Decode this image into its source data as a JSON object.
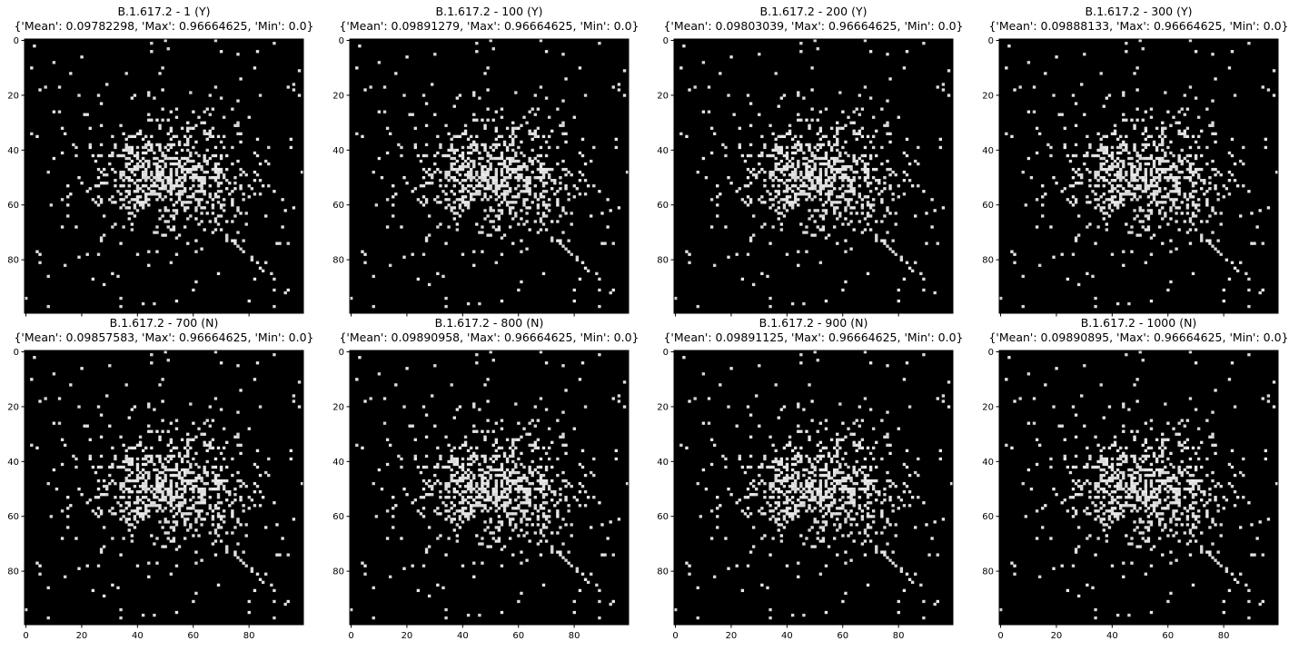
{
  "colors": {
    "background": "#000000",
    "pixel": "#d8d8d8",
    "frame": "#000000"
  },
  "chart_data": [
    {
      "type": "heatmap",
      "title_line1": "B.1.617.2 - 1 (Y)",
      "title_line2": "{'Mean': 0.09782298, 'Max': 0.96664625, 'Min': 0.0}",
      "colormap": "gray",
      "xlim": [
        0,
        100
      ],
      "ylim": [
        0,
        100
      ],
      "xticks": [
        "0",
        "20",
        "40",
        "60",
        "80"
      ],
      "yticks": [
        "0",
        "20",
        "40",
        "60",
        "80"
      ],
      "xtick_labels_shown": false,
      "stats": {
        "mean": 0.09782298,
        "max": 0.96664625,
        "min": 0.0
      }
    },
    {
      "type": "heatmap",
      "title_line1": "B.1.617.2 - 100 (Y)",
      "title_line2": "{'Mean': 0.09891279, 'Max': 0.96664625, 'Min': 0.0}",
      "colormap": "gray",
      "xlim": [
        0,
        100
      ],
      "ylim": [
        0,
        100
      ],
      "xticks": [
        "0",
        "20",
        "40",
        "60",
        "80"
      ],
      "yticks": [
        "0",
        "20",
        "40",
        "60",
        "80"
      ],
      "xtick_labels_shown": false,
      "stats": {
        "mean": 0.09891279,
        "max": 0.96664625,
        "min": 0.0
      }
    },
    {
      "type": "heatmap",
      "title_line1": "B.1.617.2 - 200 (Y)",
      "title_line2": "{'Mean': 0.09803039, 'Max': 0.96664625, 'Min': 0.0}",
      "colormap": "gray",
      "xlim": [
        0,
        100
      ],
      "ylim": [
        0,
        100
      ],
      "xticks": [
        "0",
        "20",
        "40",
        "60",
        "80"
      ],
      "yticks": [
        "0",
        "20",
        "40",
        "60",
        "80"
      ],
      "xtick_labels_shown": false,
      "stats": {
        "mean": 0.09803039,
        "max": 0.96664625,
        "min": 0.0
      }
    },
    {
      "type": "heatmap",
      "title_line1": "B.1.617.2 - 300 (Y)",
      "title_line2": "{'Mean': 0.09888133, 'Max': 0.96664625, 'Min': 0.0}",
      "colormap": "gray",
      "xlim": [
        0,
        100
      ],
      "ylim": [
        0,
        100
      ],
      "xticks": [
        "0",
        "20",
        "40",
        "60",
        "80"
      ],
      "yticks": [
        "0",
        "20",
        "40",
        "60",
        "80"
      ],
      "xtick_labels_shown": false,
      "stats": {
        "mean": 0.09888133,
        "max": 0.96664625,
        "min": 0.0
      }
    },
    {
      "type": "heatmap",
      "title_line1": "B.1.617.2 - 700 (N)",
      "title_line2": "{'Mean': 0.09857583, 'Max': 0.96664625, 'Min': 0.0}",
      "colormap": "gray",
      "xlim": [
        0,
        100
      ],
      "ylim": [
        0,
        100
      ],
      "xticks": [
        "0",
        "20",
        "40",
        "60",
        "80"
      ],
      "yticks": [
        "0",
        "20",
        "40",
        "60",
        "80"
      ],
      "xtick_labels_shown": true,
      "stats": {
        "mean": 0.09857583,
        "max": 0.96664625,
        "min": 0.0
      }
    },
    {
      "type": "heatmap",
      "title_line1": "B.1.617.2 - 800 (N)",
      "title_line2": "{'Mean': 0.09890958, 'Max': 0.96664625, 'Min': 0.0}",
      "colormap": "gray",
      "xlim": [
        0,
        100
      ],
      "ylim": [
        0,
        100
      ],
      "xticks": [
        "0",
        "20",
        "40",
        "60",
        "80"
      ],
      "yticks": [
        "0",
        "20",
        "40",
        "60",
        "80"
      ],
      "xtick_labels_shown": true,
      "stats": {
        "mean": 0.09890958,
        "max": 0.96664625,
        "min": 0.0
      }
    },
    {
      "type": "heatmap",
      "title_line1": "B.1.617.2 - 900 (N)",
      "title_line2": "{'Mean': 0.09891125, 'Max': 0.96664625, 'Min': 0.0}",
      "colormap": "gray",
      "xlim": [
        0,
        100
      ],
      "ylim": [
        0,
        100
      ],
      "xticks": [
        "0",
        "20",
        "40",
        "60",
        "80"
      ],
      "yticks": [
        "0",
        "20",
        "40",
        "60",
        "80"
      ],
      "xtick_labels_shown": true,
      "stats": {
        "mean": 0.09891125,
        "max": 0.96664625,
        "min": 0.0
      }
    },
    {
      "type": "heatmap",
      "title_line1": "B.1.617.2 - 1000 (N)",
      "title_line2": "{'Mean': 0.09890895, 'Max': 0.96664625, 'Min': 0.0}",
      "colormap": "gray",
      "xlim": [
        0,
        100
      ],
      "ylim": [
        0,
        100
      ],
      "xticks": [
        "0",
        "20",
        "40",
        "60",
        "80"
      ],
      "yticks": [
        "0",
        "20",
        "40",
        "60",
        "80"
      ],
      "xtick_labels_shown": true,
      "stats": {
        "mean": 0.09890895,
        "max": 0.96664625,
        "min": 0.0
      }
    }
  ]
}
